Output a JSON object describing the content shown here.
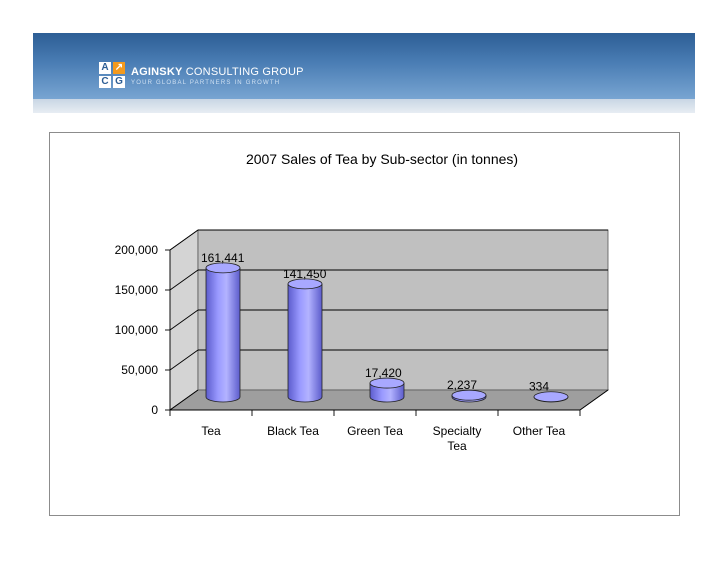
{
  "header": {
    "logo_letters": [
      "A",
      "",
      "C",
      "G"
    ],
    "company_bold": "AGINSKY",
    "company_rest": " CONSULTING GROUP",
    "tagline": "YOUR GLOBAL PARTNERS IN GROWTH"
  },
  "colors": {
    "bar": "#9999ff",
    "bar_dark": "#5c5ccc",
    "wall": "#c0c0c0",
    "floor": "#9e9e9e",
    "banner": "#3a6ba3"
  },
  "chart_data": {
    "type": "bar",
    "title": "2007 Sales of Tea by Sub-sector (in tonnes)",
    "categories": [
      [
        "Tea"
      ],
      [
        "Black Tea"
      ],
      [
        "Green Tea"
      ],
      [
        "Specialty",
        "Tea"
      ],
      [
        "Other Tea"
      ]
    ],
    "values": [
      161441,
      141450,
      17420,
      2237,
      334
    ],
    "data_labels": [
      "161,441",
      "141,450",
      "17,420",
      "2,237",
      "334"
    ],
    "ylim": [
      0,
      200000
    ],
    "yticks": [
      0,
      50000,
      100000,
      150000,
      200000
    ],
    "ytick_labels": [
      "0",
      "50,000",
      "100,000",
      "150,000",
      "200,000"
    ],
    "grid": true,
    "style": "3d-cylinder"
  }
}
